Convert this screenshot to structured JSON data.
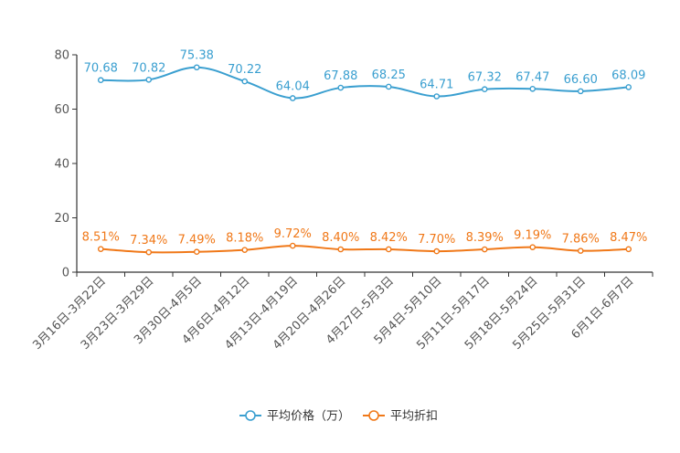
{
  "chart_data": {
    "type": "line",
    "title": "",
    "xlabel": "",
    "ylabel": "",
    "ylim": [
      0,
      80
    ],
    "yticks": [
      0,
      20,
      40,
      60,
      80
    ],
    "grid": false,
    "legend_position": "bottom-center",
    "categories": [
      "3月16日-3月22日",
      "3月23日-3月29日",
      "3月30日-4月5日",
      "4月6日-4月12日",
      "4月13日-4月19日",
      "4月20日-4月26日",
      "4月27日-5月3日",
      "5月4日-5月10日",
      "5月11日-5月17日",
      "5月18日-5月24日",
      "5月25日-5月31日",
      "6月1日-6月7日"
    ],
    "series": [
      {
        "name": "平均价格（万）",
        "color": "#3a9fd0",
        "values": [
          70.68,
          70.82,
          75.38,
          70.22,
          64.04,
          67.88,
          68.25,
          64.71,
          67.32,
          67.47,
          66.6,
          68.09
        ],
        "labels": [
          "70.68",
          "70.82",
          "75.38",
          "70.22",
          "64.04",
          "67.88",
          "68.25",
          "64.71",
          "67.32",
          "67.47",
          "66.60",
          "68.09"
        ]
      },
      {
        "name": "平均折扣",
        "color": "#f07818",
        "values": [
          8.51,
          7.34,
          7.49,
          8.18,
          9.72,
          8.4,
          8.42,
          7.7,
          8.39,
          9.19,
          7.86,
          8.47
        ],
        "labels": [
          "8.51%",
          "7.34%",
          "7.49%",
          "8.18%",
          "9.72%",
          "8.40%",
          "8.42%",
          "7.70%",
          "8.39%",
          "9.19%",
          "7.86%",
          "8.47%"
        ]
      }
    ]
  }
}
